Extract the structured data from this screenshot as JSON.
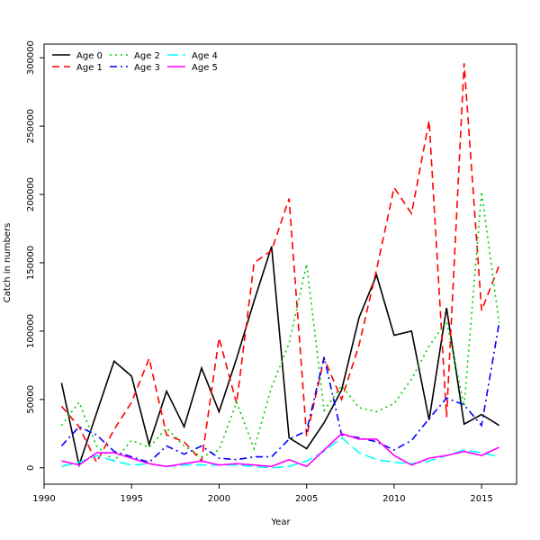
{
  "chart_data": {
    "type": "line",
    "title": "",
    "xlabel": "Year",
    "ylabel": "Catch in numbers",
    "xlim": [
      1990,
      2017
    ],
    "ylim": [
      -12000,
      310000
    ],
    "x_ticks": [
      1990,
      1995,
      2000,
      2005,
      2010,
      2015
    ],
    "y_ticks": [
      0,
      50000,
      100000,
      150000,
      200000,
      250000,
      300000
    ],
    "grid": false,
    "legend_position": "top-left",
    "x": [
      1991,
      1992,
      1993,
      1994,
      1995,
      1996,
      1997,
      1998,
      1999,
      2000,
      2001,
      2002,
      2003,
      2004,
      2005,
      2006,
      2007,
      2008,
      2009,
      2010,
      2011,
      2012,
      2013,
      2014,
      2015,
      2016
    ],
    "series": [
      {
        "name": "Age 0",
        "color": "#000000",
        "dash": "solid",
        "values": [
          62000,
          2000,
          40000,
          78000,
          67000,
          17000,
          56000,
          30000,
          73000,
          41000,
          80000,
          122000,
          162000,
          22000,
          14000,
          33000,
          57000,
          110000,
          141000,
          97000,
          100000,
          35000,
          117000,
          32000,
          39000,
          31000
        ]
      },
      {
        "name": "Age 1",
        "color": "#ff0000",
        "dash": "dashed",
        "values": [
          45000,
          30000,
          4000,
          28000,
          48000,
          80000,
          24000,
          19000,
          5000,
          95000,
          47000,
          150000,
          159000,
          197000,
          23000,
          80000,
          50000,
          90000,
          145000,
          205000,
          186000,
          254000,
          37000,
          296000,
          115000,
          148000
        ]
      },
      {
        "name": "Age 2",
        "color": "#00cc00",
        "dash": "dotted",
        "values": [
          31000,
          48000,
          16000,
          5000,
          20000,
          15000,
          29000,
          16000,
          8000,
          13000,
          48000,
          14000,
          59000,
          91000,
          149000,
          42000,
          60000,
          44000,
          41000,
          47000,
          65000,
          89000,
          107000,
          45000,
          202000,
          106000
        ]
      },
      {
        "name": "Age 3",
        "color": "#0000ff",
        "dash": "dashdot",
        "values": [
          16000,
          30000,
          24000,
          12000,
          8000,
          4000,
          16000,
          10000,
          16000,
          7000,
          6000,
          8000,
          8000,
          21000,
          27000,
          81000,
          24000,
          22000,
          19000,
          13000,
          20000,
          36000,
          51000,
          46000,
          31000,
          106000
        ]
      },
      {
        "name": "Age 4",
        "color": "#00ffff",
        "dash": "longdash",
        "values": [
          1000,
          4000,
          9000,
          5000,
          2000,
          3000,
          1000,
          2000,
          2000,
          2000,
          2000,
          1000,
          0,
          1000,
          5000,
          12000,
          22000,
          11000,
          6000,
          4000,
          3000,
          5000,
          9000,
          13000,
          11000,
          8000
        ]
      },
      {
        "name": "Age 5",
        "color": "#ff00ff",
        "dash": "solid",
        "values": [
          5000,
          2000,
          11000,
          11000,
          7000,
          3000,
          1000,
          3000,
          5000,
          2000,
          3000,
          2000,
          1000,
          6000,
          1000,
          13000,
          25000,
          21000,
          21000,
          9000,
          2000,
          7000,
          9000,
          12000,
          9000,
          15000
        ]
      }
    ]
  }
}
